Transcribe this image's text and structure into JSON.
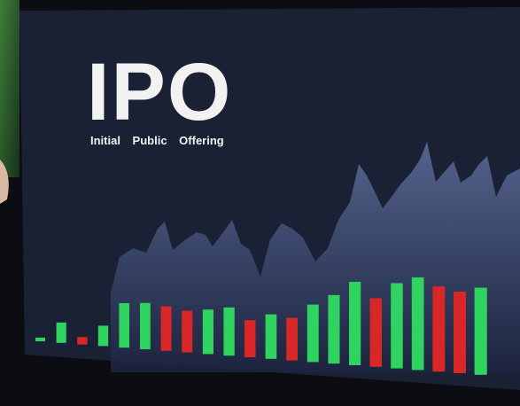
{
  "chart_data": {
    "type": "bar",
    "title": "IPO",
    "subtitle": "Initial Public Offering",
    "categories": [
      null,
      null,
      null,
      null,
      null,
      null,
      null,
      null,
      null,
      null,
      null,
      null,
      null,
      null,
      null,
      null,
      null,
      null,
      null,
      null,
      null,
      null
    ],
    "values": [
      4,
      22,
      8,
      22,
      48,
      50,
      48,
      45,
      48,
      52,
      40,
      48,
      46,
      62,
      74,
      90,
      74,
      92,
      100,
      92,
      88,
      94
    ],
    "colors": [
      "#2fd35f",
      "#2fd35f",
      "#d92626",
      "#2fd35f",
      "#2fd35f",
      "#2fd35f",
      "#d92626",
      "#d92626",
      "#2fd35f",
      "#2fd35f",
      "#d92626",
      "#2fd35f",
      "#d92626",
      "#2fd35f",
      "#2fd35f",
      "#2fd35f",
      "#d92626",
      "#2fd35f",
      "#2fd35f",
      "#d92626",
      "#d92626",
      "#2fd35f"
    ],
    "ylim": [
      0,
      110
    ]
  }
}
